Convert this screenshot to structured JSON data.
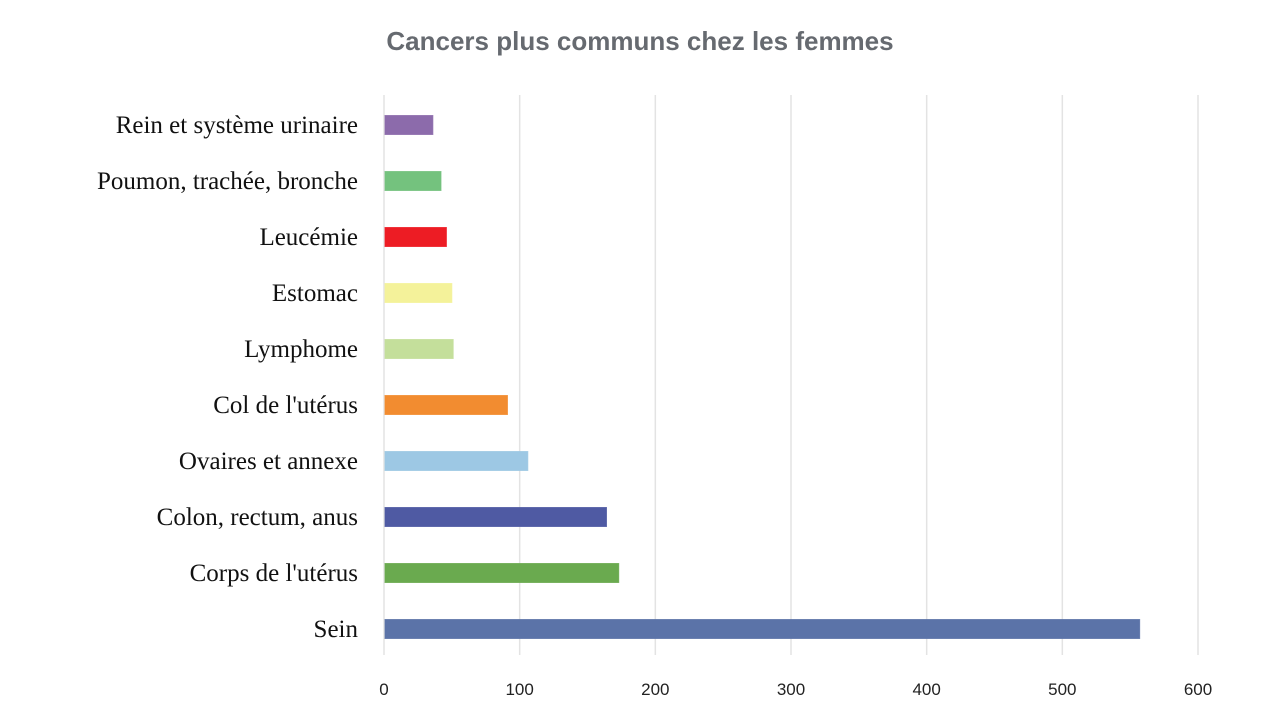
{
  "chart_data": {
    "type": "bar",
    "orientation": "horizontal",
    "title": "Cancers plus communs chez les femmes",
    "xlabel": "",
    "ylabel": "",
    "categories": [
      "Sein",
      "Corps de l'utérus",
      "Colon, rectum, anus",
      "Ovaires et annexe",
      "Col de l'utérus",
      "Lymphome",
      "Estomac",
      "Leucémie",
      "Poumon, trachée, bronche",
      "Rein et système urinaire"
    ],
    "values": [
      557,
      173,
      164,
      106,
      91,
      51,
      50,
      46,
      42,
      36
    ],
    "colors": [
      "#5b73a8",
      "#6aaa4f",
      "#4f5aa3",
      "#9dc8e4",
      "#f28c30",
      "#c4df9b",
      "#f4f29a",
      "#ed1c24",
      "#74c27e",
      "#8c6bab"
    ],
    "xlim": [
      0,
      600
    ],
    "xticks": [
      "0",
      "100",
      "200",
      "300",
      "400",
      "500",
      "600"
    ],
    "grid": true,
    "legend": "none"
  }
}
